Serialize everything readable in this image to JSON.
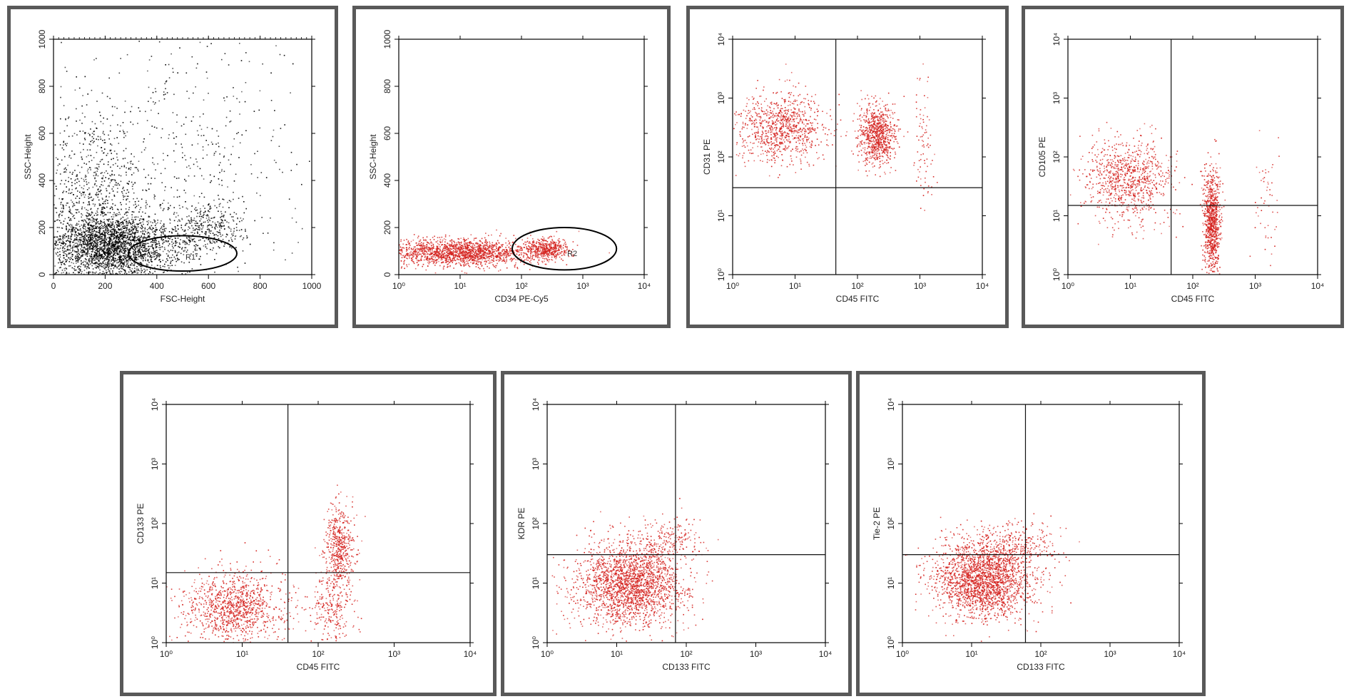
{
  "colors": {
    "gray_dots": "#000000",
    "red_dots": "#d4201c",
    "frame": "#595959",
    "axis": "#000000"
  },
  "chart_data": [
    {
      "id": "p1",
      "type": "scatter",
      "xlabel": "FSC-Height",
      "ylabel": "SSC-Height",
      "xscale": "linear",
      "yscale": "linear",
      "xlim": [
        0,
        1000
      ],
      "ylim": [
        0,
        1000
      ],
      "xticks": [
        "0",
        "200",
        "400",
        "600",
        "800",
        "1000"
      ],
      "yticks": [
        "0",
        "200",
        "400",
        "600",
        "800",
        "1000"
      ],
      "gate": {
        "label": "R1",
        "cx": 500,
        "cy": 90,
        "rx": 210,
        "ry": 75
      },
      "clusters": [
        {
          "cx": 230,
          "cy": 120,
          "sx": 120,
          "sy": 70,
          "n": 2600,
          "color": "gray_dots"
        },
        {
          "cx": 150,
          "cy": 300,
          "sx": 110,
          "sy": 200,
          "n": 900,
          "color": "gray_dots"
        },
        {
          "cx": 600,
          "cy": 200,
          "sx": 70,
          "sy": 55,
          "n": 350,
          "color": "gray_dots"
        },
        {
          "cx": 500,
          "cy": 500,
          "sx": 250,
          "sy": 280,
          "n": 500,
          "color": "gray_dots"
        }
      ]
    },
    {
      "id": "p2",
      "type": "scatter",
      "xlabel": "CD34 PE-Cy5",
      "ylabel": "SSC-Height",
      "xscale": "log",
      "yscale": "linear",
      "xlim": [
        1,
        10000
      ],
      "ylim": [
        0,
        1000
      ],
      "xticks": [
        "10⁰",
        "10¹",
        "10²",
        "10³",
        "10⁴"
      ],
      "yticks": [
        "0",
        "200",
        "400",
        "600",
        "800",
        "1000"
      ],
      "gate": {
        "label": "R2",
        "cx": 500,
        "cy": 110,
        "rx": 0.85,
        "ry": 90
      },
      "clusters": [
        {
          "cx": 10,
          "cy": 95,
          "sx": 0.6,
          "sy": 28,
          "n": 1700,
          "color": "red_dots"
        },
        {
          "cx": 250,
          "cy": 110,
          "sx": 0.2,
          "sy": 25,
          "n": 450,
          "color": "red_dots"
        }
      ]
    },
    {
      "id": "p3",
      "type": "scatter",
      "xlabel": "CD45 FITC",
      "ylabel": "CD31 PE",
      "xscale": "log",
      "yscale": "log",
      "xlim": [
        1,
        10000
      ],
      "ylim": [
        1,
        10000
      ],
      "xticks": [
        "10⁰",
        "10¹",
        "10²",
        "10³",
        "10⁴"
      ],
      "yticks": [
        "10⁰",
        "10¹",
        "10²",
        "10³",
        "10⁴"
      ],
      "quadrant": {
        "x": 45,
        "y": 30
      },
      "clusters": [
        {
          "cx": 6,
          "cy": 300,
          "sx": 0.35,
          "sy": 0.3,
          "n": 900,
          "color": "red_dots"
        },
        {
          "cx": 200,
          "cy": 250,
          "sx": 0.15,
          "sy": 0.25,
          "n": 800,
          "color": "red_dots"
        },
        {
          "cx": 1100,
          "cy": 200,
          "sx": 0.08,
          "sy": 0.5,
          "n": 80,
          "color": "red_dots"
        }
      ]
    },
    {
      "id": "p4",
      "type": "scatter",
      "xlabel": "CD45 FITC",
      "ylabel": "CD105 PE",
      "xscale": "log",
      "yscale": "log",
      "xlim": [
        1,
        10000
      ],
      "ylim": [
        1,
        10000
      ],
      "xticks": [
        "10⁰",
        "10¹",
        "10²",
        "10³",
        "10⁴"
      ],
      "yticks": [
        "10⁰",
        "10¹",
        "10²",
        "10³",
        "10⁴"
      ],
      "quadrant": {
        "x": 45,
        "y": 15
      },
      "clusters": [
        {
          "cx": 9,
          "cy": 40,
          "sx": 0.35,
          "sy": 0.35,
          "n": 900,
          "color": "red_dots"
        },
        {
          "cx": 200,
          "cy": 8,
          "sx": 0.07,
          "sy": 0.45,
          "n": 900,
          "color": "red_dots"
        },
        {
          "cx": 1500,
          "cy": 20,
          "sx": 0.1,
          "sy": 0.5,
          "n": 50,
          "color": "red_dots"
        }
      ]
    },
    {
      "id": "p5",
      "type": "scatter",
      "xlabel": "CD45 FITC",
      "ylabel": "CD133 PE",
      "xscale": "log",
      "yscale": "log",
      "xlim": [
        1,
        10000
      ],
      "ylim": [
        1,
        10000
      ],
      "xticks": [
        "10⁰",
        "10¹",
        "10²",
        "10³",
        "10⁴"
      ],
      "yticks": [
        "10⁰",
        "10¹",
        "10²",
        "10³",
        "10⁴"
      ],
      "quadrant": {
        "x": 40,
        "y": 15
      },
      "clusters": [
        {
          "cx": 8,
          "cy": 4,
          "sx": 0.35,
          "sy": 0.3,
          "n": 1100,
          "color": "red_dots"
        },
        {
          "cx": 190,
          "cy": 40,
          "sx": 0.1,
          "sy": 0.35,
          "n": 500,
          "color": "red_dots"
        },
        {
          "cx": 150,
          "cy": 4,
          "sx": 0.15,
          "sy": 0.3,
          "n": 250,
          "color": "red_dots"
        }
      ]
    },
    {
      "id": "p6",
      "type": "scatter",
      "xlabel": "CD133 FITC",
      "ylabel": "KDR PE",
      "xscale": "log",
      "yscale": "log",
      "xlim": [
        1,
        10000
      ],
      "ylim": [
        1,
        10000
      ],
      "xticks": [
        "10⁰",
        "10¹",
        "10²",
        "10³",
        "10⁴"
      ],
      "yticks": [
        "10⁰",
        "10¹",
        "10²",
        "10³",
        "10⁴"
      ],
      "quadrant": {
        "x": 70,
        "y": 30
      },
      "clusters": [
        {
          "cx": 15,
          "cy": 10,
          "sx": 0.38,
          "sy": 0.35,
          "n": 2200,
          "color": "red_dots"
        },
        {
          "cx": 60,
          "cy": 50,
          "sx": 0.25,
          "sy": 0.2,
          "n": 200,
          "color": "red_dots"
        }
      ]
    },
    {
      "id": "p7",
      "type": "scatter",
      "xlabel": "CD133 FITC",
      "ylabel": "Tie-2 PE",
      "xscale": "log",
      "yscale": "log",
      "xlim": [
        1,
        10000
      ],
      "ylim": [
        1,
        10000
      ],
      "xticks": [
        "10⁰",
        "10¹",
        "10²",
        "10³",
        "10⁴"
      ],
      "yticks": [
        "10⁰",
        "10¹",
        "10²",
        "10³",
        "10⁴"
      ],
      "quadrant": {
        "x": 60,
        "y": 30
      },
      "clusters": [
        {
          "cx": 15,
          "cy": 12,
          "sx": 0.35,
          "sy": 0.33,
          "n": 2300,
          "color": "red_dots"
        },
        {
          "cx": 50,
          "cy": 45,
          "sx": 0.25,
          "sy": 0.2,
          "n": 200,
          "color": "red_dots"
        }
      ]
    }
  ]
}
